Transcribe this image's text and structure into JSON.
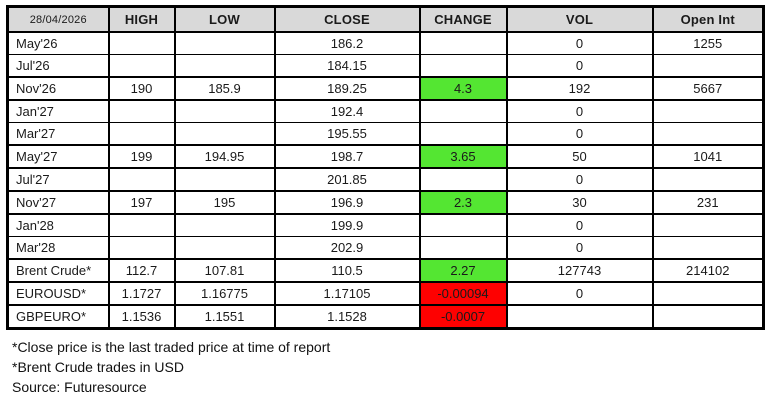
{
  "report": {
    "date": "28/04/2026",
    "columns": [
      "HIGH",
      "LOW",
      "CLOSE",
      "CHANGE",
      "VOL",
      "Open Int"
    ],
    "rows": [
      {
        "label": "May'26",
        "high": "",
        "low": "",
        "close": "186.2",
        "change": "",
        "trend": "",
        "vol": "0",
        "open_int": "1255",
        "thin_bottom": true
      },
      {
        "label": "Jul'26",
        "high": "",
        "low": "",
        "close": "184.15",
        "change": "",
        "trend": "",
        "vol": "0",
        "open_int": "",
        "thin_bottom": false
      },
      {
        "label": "Nov'26",
        "high": "190",
        "low": "185.9",
        "close": "189.25",
        "change": "4.3",
        "trend": "up",
        "vol": "192",
        "open_int": "5667",
        "thin_bottom": false
      },
      {
        "label": "Jan'27",
        "high": "",
        "low": "",
        "close": "192.4",
        "change": "",
        "trend": "",
        "vol": "0",
        "open_int": "",
        "thin_bottom": true
      },
      {
        "label": "Mar'27",
        "high": "",
        "low": "",
        "close": "195.55",
        "change": "",
        "trend": "",
        "vol": "0",
        "open_int": "",
        "thin_bottom": false
      },
      {
        "label": "May'27",
        "high": "199",
        "low": "194.95",
        "close": "198.7",
        "change": "3.65",
        "trend": "up",
        "vol": "50",
        "open_int": "1041",
        "thin_bottom": false
      },
      {
        "label": "Jul'27",
        "high": "",
        "low": "",
        "close": "201.85",
        "change": "",
        "trend": "",
        "vol": "0",
        "open_int": "",
        "thin_bottom": false
      },
      {
        "label": "Nov'27",
        "high": "197",
        "low": "195",
        "close": "196.9",
        "change": "2.3",
        "trend": "up",
        "vol": "30",
        "open_int": "231",
        "thin_bottom": false
      },
      {
        "label": "Jan'28",
        "high": "",
        "low": "",
        "close": "199.9",
        "change": "",
        "trend": "",
        "vol": "0",
        "open_int": "",
        "thin_bottom": true
      },
      {
        "label": "Mar'28",
        "high": "",
        "low": "",
        "close": "202.9",
        "change": "",
        "trend": "",
        "vol": "0",
        "open_int": "",
        "thin_bottom": false
      },
      {
        "label": "Brent Crude*",
        "high": "112.7",
        "low": "107.81",
        "close": "110.5",
        "change": "2.27",
        "trend": "up",
        "vol": "127743",
        "open_int": "214102",
        "thin_bottom": false
      },
      {
        "label": "EUROUSD*",
        "high": "1.1727",
        "low": "1.16775",
        "close": "1.17105",
        "change": "-0.00094",
        "trend": "down",
        "vol": "0",
        "open_int": "",
        "thin_bottom": false
      },
      {
        "label": "GBPEURO*",
        "high": "1.1536",
        "low": "1.1551",
        "close": "1.1528",
        "change": "-0.0007",
        "trend": "down",
        "vol": "",
        "open_int": "",
        "thin_bottom": false
      }
    ]
  },
  "colors": {
    "header_bg": "#d9d9d9",
    "positive_bg": "#54e632",
    "negative_bg": "#fe0101",
    "border": "#000000"
  },
  "footnotes": [
    "*Close price is the last traded price at time of report",
    "*Brent Crude trades in USD",
    "Source: Futuresource"
  ]
}
